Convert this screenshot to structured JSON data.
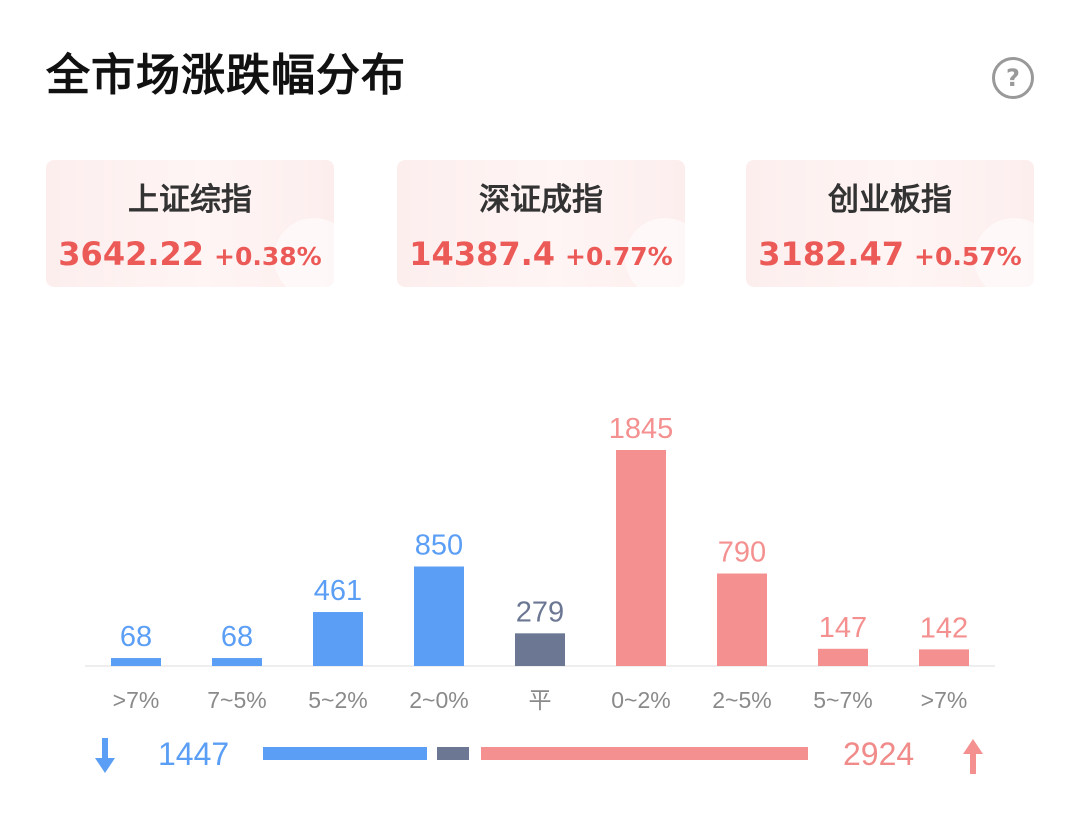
{
  "header": {
    "title": "全市场涨跌幅分布",
    "help_icon": "?"
  },
  "indices": [
    {
      "name": "上证综指",
      "value": "3642.22",
      "change": "+0.38%"
    },
    {
      "name": "深证成指",
      "value": "14387.4",
      "change": "+0.77%"
    },
    {
      "name": "创业板指",
      "value": "3182.47",
      "change": "+0.57%"
    }
  ],
  "colors": {
    "down": "#5b9ef5",
    "flat": "#6b7793",
    "up": "#f49190",
    "up_text": "#eb5a57"
  },
  "chart_data": {
    "type": "bar",
    "title": "全市场涨跌幅分布",
    "categories": [
      ">7%",
      "7~5%",
      "5~2%",
      "2~0%",
      "平",
      "0~2%",
      "2~5%",
      "5~7%",
      ">7%"
    ],
    "values": [
      68,
      68,
      461,
      850,
      279,
      1845,
      790,
      147,
      142
    ],
    "bar_colors": [
      "#5b9ef5",
      "#5b9ef5",
      "#5b9ef5",
      "#5b9ef5",
      "#6b7793",
      "#f49190",
      "#f49190",
      "#f49190",
      "#f49190"
    ],
    "ylim": [
      0,
      1845
    ],
    "grid": false,
    "data_labels": true
  },
  "summary": {
    "down_total": "1447",
    "up_total": "2924",
    "flat_total": 279,
    "down_icon": "arrow-down-icon",
    "up_icon": "arrow-up-icon"
  }
}
